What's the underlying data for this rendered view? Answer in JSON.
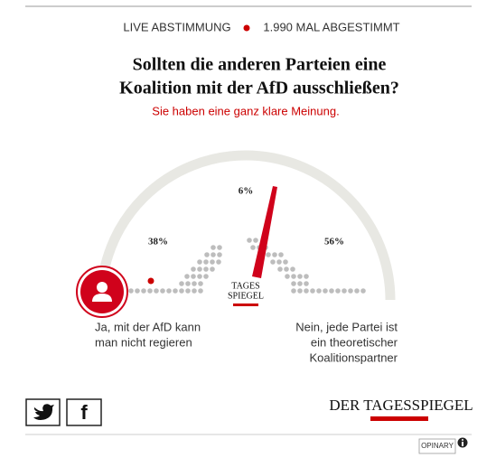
{
  "header": {
    "live": "LIVE ABSTIMMUNG",
    "votes": "1.990 MAL ABGESTIMMT"
  },
  "question": {
    "title_lines": [
      "Sollten die anderen Parteien eine",
      "Koalition mit der AfD ausschließen?"
    ],
    "subtitle": "Sie haben eine ganz klare Meinung."
  },
  "results": {
    "left": "38%",
    "middle": "6%",
    "right": "56%"
  },
  "answers": {
    "left_lines": [
      "Ja, mit der AfD kann",
      "man nicht regieren"
    ],
    "right_lines": [
      "Nein, jede Partei ist",
      "ein theoretischer",
      "Koalitionspartner"
    ]
  },
  "logo": {
    "gauge_lines": [
      "TAGES",
      "SPIEGEL"
    ],
    "brand": "DER TAGESSPIEGEL"
  },
  "social": {
    "facebook": "f"
  },
  "footer": {
    "provider": "OPINARY"
  }
}
